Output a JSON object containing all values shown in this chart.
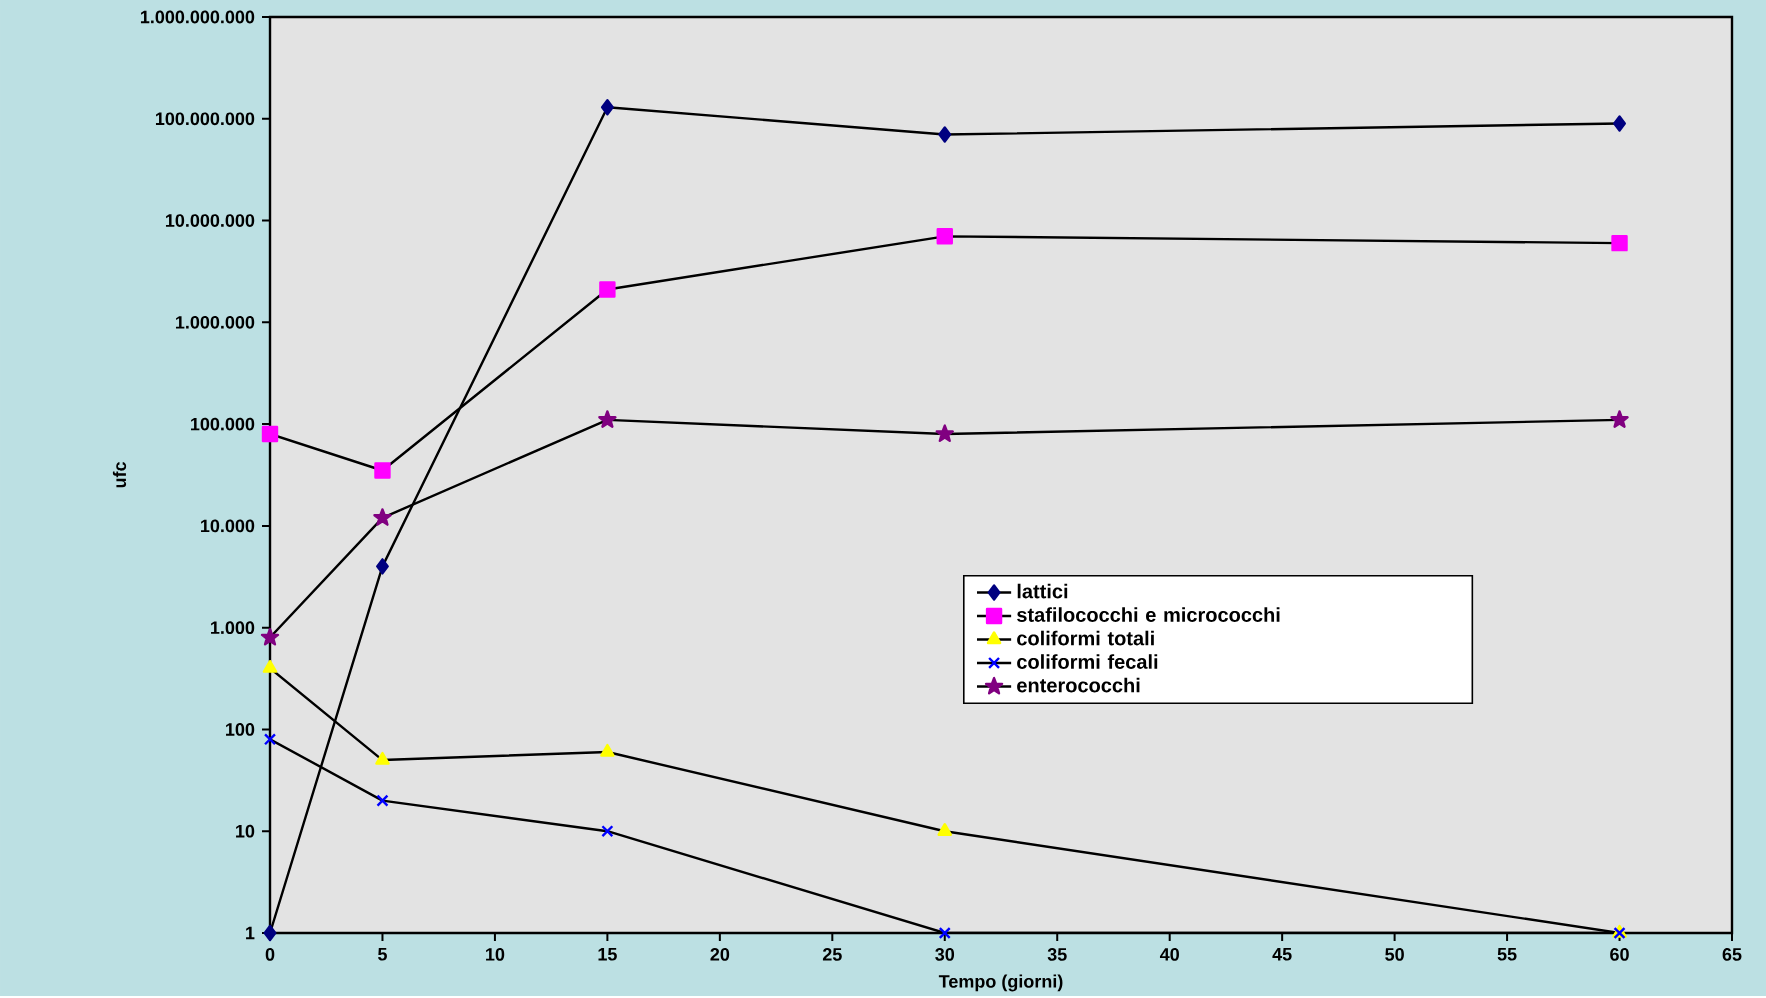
{
  "chart_data": {
    "type": "line",
    "xlabel": "Tempo (giorni)",
    "ylabel": "ufc",
    "log": "y",
    "grid": false,
    "legend": "right",
    "x": [
      0,
      5,
      15,
      30,
      60
    ],
    "series": [
      {
        "name": "lattici",
        "color": "#000080",
        "marker": "diamond",
        "values": [
          1,
          4000,
          130000000,
          70000000,
          90000000
        ]
      },
      {
        "name": "stafilococchi e micrococchi",
        "color": "#ff00ff",
        "marker": "square",
        "values": [
          80000,
          35000,
          2100000,
          7000000,
          6000000
        ]
      },
      {
        "name": "coliformi totali",
        "color": "#ffff00",
        "marker": "triangle",
        "values": [
          400,
          50,
          60,
          10,
          1
        ]
      },
      {
        "name": "coliformi fecali",
        "color": "#0000ff",
        "marker": "cross",
        "values": [
          80,
          20,
          10,
          1,
          1
        ]
      },
      {
        "name": "enterococchi",
        "color": "#800080",
        "marker": "star",
        "values": [
          800,
          12000,
          110000,
          80000,
          110000
        ]
      }
    ],
    "xlim": [
      0,
      65
    ],
    "xticks": [
      0,
      5,
      10,
      15,
      20,
      25,
      30,
      35,
      40,
      45,
      50,
      55,
      60,
      65
    ],
    "ylim": [
      1,
      1000000000
    ],
    "yticks": [
      1,
      10,
      100,
      {
        "value": 1000,
        "label": "1.000"
      },
      {
        "value": 10000,
        "label": "10.000"
      },
      {
        "value": 100000,
        "label": "100.000"
      },
      {
        "value": 1000000,
        "label": "1.000.000"
      },
      {
        "value": 10000000,
        "label": "10.000.000"
      },
      {
        "value": 100000000,
        "label": "100.000.000"
      },
      {
        "value": 1000000000,
        "label": "1.000.000.000"
      }
    ]
  }
}
